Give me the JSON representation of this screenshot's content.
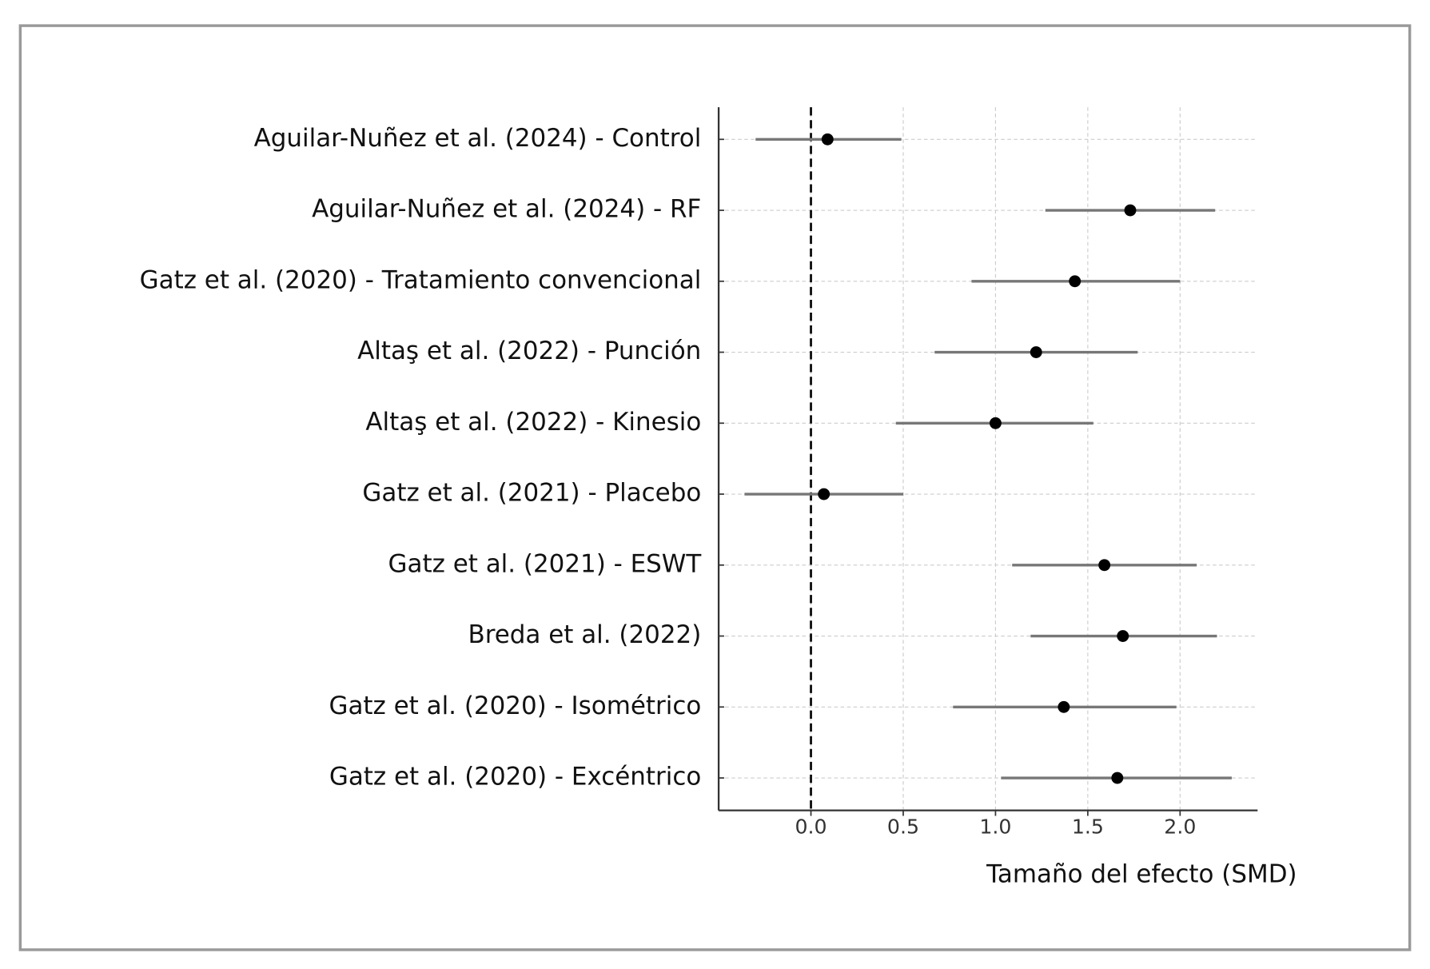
{
  "chart_data": {
    "type": "forest",
    "x_label": "Tamaño del efecto (SMD)",
    "categories": [
      "Aguilar-Nuñez et al. (2024) - Control",
      "Aguilar-Nuñez et al. (2024) - RF",
      "Gatz et al. (2020) - Tratamiento convencional",
      "Altaş et al. (2022) - Punción",
      "Altaş et al. (2022) - Kinesio",
      "Gatz et al. (2021) - Placebo",
      "Gatz et al. (2021) - ESWT",
      "Breda et al. (2022)",
      "Gatz et al. (2020) - Isométrico",
      "Gatz et al. (2020) - Excéntrico"
    ],
    "values": [
      0.09,
      1.73,
      1.43,
      1.22,
      1.0,
      0.07,
      1.59,
      1.69,
      1.37,
      1.66
    ],
    "lower": [
      -0.3,
      1.27,
      0.87,
      0.67,
      0.46,
      -0.36,
      1.09,
      1.19,
      0.77,
      1.03
    ],
    "upper": [
      0.49,
      2.19,
      2.0,
      1.77,
      1.53,
      0.5,
      2.09,
      2.2,
      1.98,
      2.28
    ],
    "point_color": "#000000",
    "ci_color": "#777777",
    "reference_line": 0,
    "xlim": [
      -0.5,
      2.42
    ],
    "xticks": [
      {
        "value": 0,
        "label": "0.0"
      },
      0.5,
      {
        "value": 1,
        "label": "1.0"
      },
      1.5,
      {
        "value": 2,
        "label": "2.0"
      }
    ],
    "grid": true
  }
}
